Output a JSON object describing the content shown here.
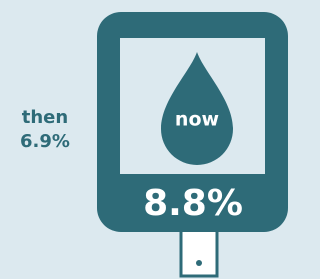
{
  "then": {
    "word": "then",
    "reading": "6.9%"
  },
  "meter": {
    "label": "now",
    "reading": "8.8%"
  }
}
